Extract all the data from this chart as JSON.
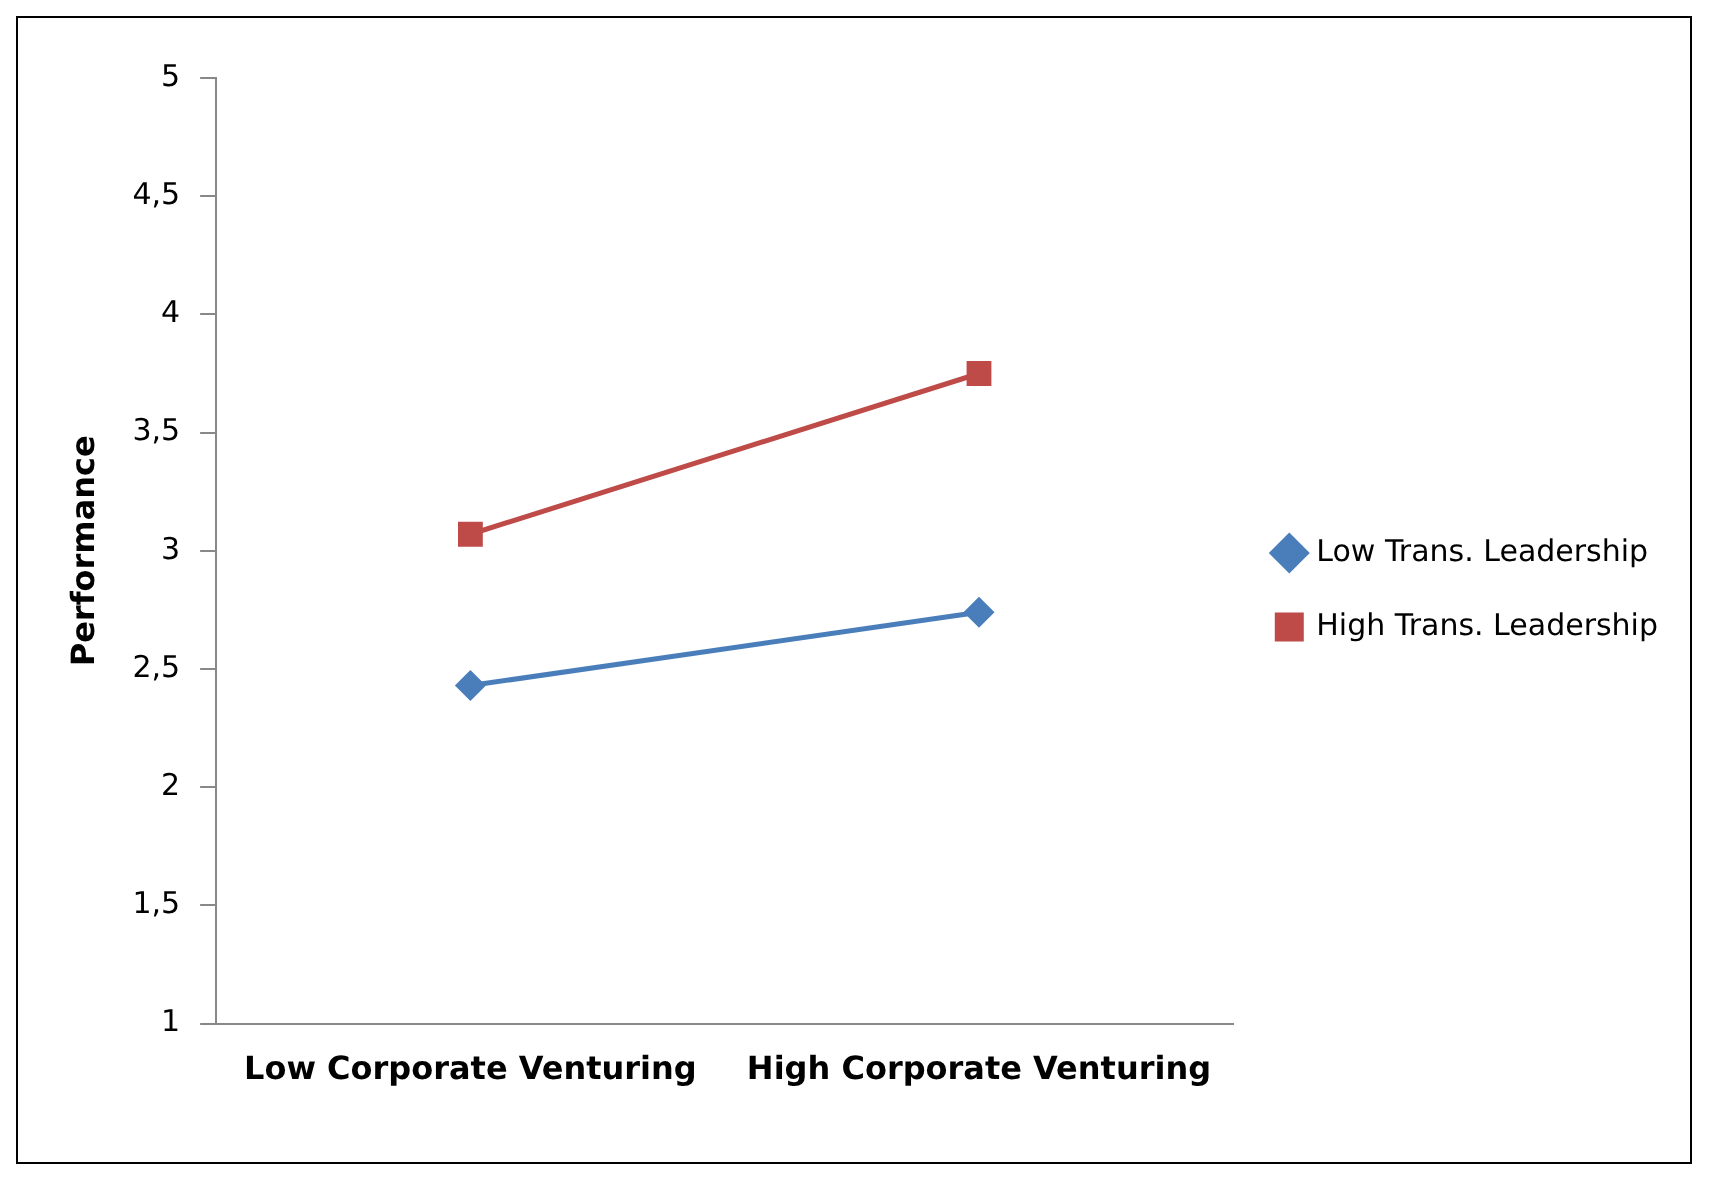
{
  "chart_data": {
    "type": "line",
    "ylabel": "Performance",
    "categories": [
      "Low Corporate Venturing",
      "High Corporate Venturing"
    ],
    "series": [
      {
        "name": "Low Trans. Leadership",
        "color": "#4a7ebb",
        "values": [
          2.43,
          2.74
        ],
        "marker": "diamond"
      },
      {
        "name": "High Trans. Leadership",
        "color": "#be4b48",
        "values": [
          3.07,
          3.75
        ],
        "marker": "square"
      }
    ],
    "ylim": [
      1,
      5
    ],
    "yticks": [
      1,
      {
        "value": 1.5,
        "label": "1,5"
      },
      2,
      {
        "value": 2.5,
        "label": "2,5"
      },
      3,
      {
        "value": 3.5,
        "label": "3,5"
      },
      4,
      {
        "value": 4.5,
        "label": "4,5"
      },
      5
    ],
    "grid": false,
    "legend": "right"
  }
}
